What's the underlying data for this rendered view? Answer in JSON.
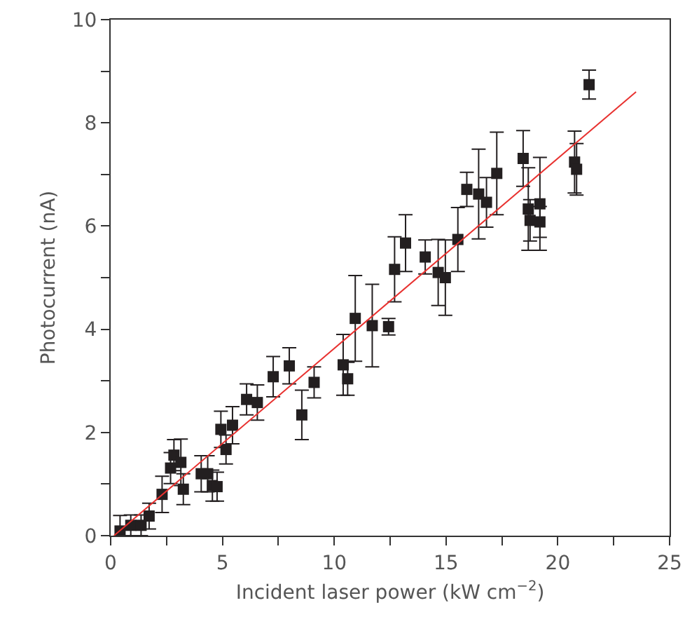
{
  "chart_data": {
    "type": "scatter",
    "xlabel": "Incident laser power (kW cm$^{−2}$)",
    "ylabel": "Photocurrent (nA)",
    "xlim": [
      0,
      25
    ],
    "ylim": [
      0,
      10
    ],
    "xticks": [
      0,
      {
        "value": 2.5,
        "label": null
      },
      5,
      {
        "value": 7.5,
        "label": null
      },
      10,
      {
        "value": 12.5,
        "label": null
      },
      15,
      {
        "value": 17.5,
        "label": null
      },
      20,
      {
        "value": 22.5,
        "label": null
      },
      25
    ],
    "yticks": [
      0,
      {
        "value": 1,
        "label": null
      },
      2,
      {
        "value": 3,
        "label": null
      },
      4,
      {
        "value": 5,
        "label": null
      },
      6,
      {
        "value": 7,
        "label": null
      },
      8,
      {
        "value": 9,
        "label": null
      },
      10
    ],
    "grid": false,
    "marker": "square",
    "series": [
      {
        "color": "#231f20",
        "x": [
          0.42,
          0.9,
          1.36,
          1.72,
          2.3,
          2.68,
          2.83,
          3.14,
          3.25,
          4.05,
          4.34,
          4.55,
          4.76,
          4.93,
          5.16,
          5.45,
          6.08,
          6.56,
          7.27,
          7.99,
          8.55,
          9.1,
          10.4,
          10.6,
          10.94,
          11.7,
          12.43,
          12.7,
          13.19,
          14.07,
          14.65,
          14.97,
          15.53,
          15.93,
          16.46,
          16.81,
          17.27,
          18.45,
          18.68,
          18.76,
          19.2,
          19.2,
          20.75,
          20.84,
          21.4
        ],
        "values": [
          0.09,
          0.2,
          0.2,
          0.38,
          0.8,
          1.31,
          1.56,
          1.42,
          0.9,
          1.2,
          1.2,
          0.97,
          0.95,
          2.06,
          1.67,
          2.14,
          2.64,
          2.58,
          3.08,
          3.29,
          2.34,
          2.97,
          3.31,
          3.04,
          4.21,
          4.07,
          4.05,
          5.16,
          5.67,
          5.4,
          5.1,
          5.0,
          5.74,
          6.71,
          6.62,
          6.46,
          7.02,
          7.31,
          6.33,
          6.11,
          6.43,
          6.08,
          7.24,
          7.1,
          8.74
        ],
        "errors": [
          0.3,
          0.2,
          0.2,
          0.25,
          0.35,
          0.3,
          0.3,
          0.45,
          0.3,
          0.35,
          0.35,
          0.3,
          0.28,
          0.35,
          0.28,
          0.36,
          0.3,
          0.34,
          0.39,
          0.35,
          0.48,
          0.3,
          0.59,
          0.32,
          0.83,
          0.8,
          0.16,
          0.63,
          0.55,
          0.33,
          0.64,
          0.73,
          0.62,
          0.33,
          0.87,
          0.48,
          0.8,
          0.54,
          0.8,
          0.4,
          0.9,
          0.3,
          0.6,
          0.5,
          0.28
        ]
      },
      {
        "type": "line",
        "color": "#e8312f",
        "marker": "none",
        "line_style": "solid",
        "x": [
          0.15,
          23.5
        ],
        "values": [
          0,
          8.6
        ]
      }
    ]
  }
}
